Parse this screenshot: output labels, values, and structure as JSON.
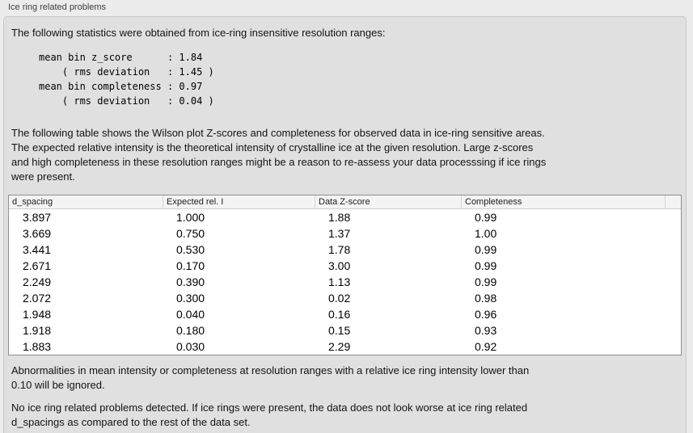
{
  "section_title": "Ice ring related problems",
  "colors": {
    "page_bg": "#ececec",
    "panel_bg": "#e0e0e0",
    "table_bg": "#ffffff",
    "table_header_bg": "#f4f4f4"
  },
  "panel": {
    "intro": "The following statistics were obtained from ice-ring insensitive resolution ranges:",
    "stats_lines": [
      "mean bin z_score      : 1.84",
      "    ( rms deviation   : 1.45 )",
      "mean bin completeness : 0.97",
      "    ( rms deviation   : 0.04 )"
    ],
    "table_note_lines": [
      "The following table shows the Wilson plot Z-scores and completeness for observed data in ice-ring sensitive areas.",
      "The expected relative intensity is the theoretical intensity of crystalline ice at the given resolution. Large z-scores",
      "and high completeness in these resolution ranges might be a reason to re-assess your data processsing if ice rings",
      "were present."
    ],
    "table": {
      "columns": [
        "d_spacing",
        "Expected rel. I",
        "Data Z-score",
        "Completeness",
        ""
      ],
      "rows": [
        [
          "3.897",
          "1.000",
          "1.88",
          "0.99"
        ],
        [
          "3.669",
          "0.750",
          "1.37",
          "1.00"
        ],
        [
          "3.441",
          "0.530",
          "1.78",
          "0.99"
        ],
        [
          "2.671",
          "0.170",
          "3.00",
          "0.99"
        ],
        [
          "2.249",
          "0.390",
          "1.13",
          "0.99"
        ],
        [
          "2.072",
          "0.300",
          "0.02",
          "0.98"
        ],
        [
          "1.948",
          "0.040",
          "0.16",
          "0.96"
        ],
        [
          "1.918",
          "0.180",
          "0.15",
          "0.93"
        ],
        [
          "1.883",
          "0.030",
          "2.29",
          "0.92"
        ]
      ]
    },
    "ignore_note_lines": [
      "Abnormalities in mean intensity or completeness at resolution ranges with a relative ice ring intensity lower than",
      "0.10 will be ignored."
    ],
    "conclusion_lines": [
      "No ice ring related problems detected. If ice rings were present, the data does not look worse at ice ring related",
      "d_spacings as compared to the rest of the data set."
    ]
  }
}
